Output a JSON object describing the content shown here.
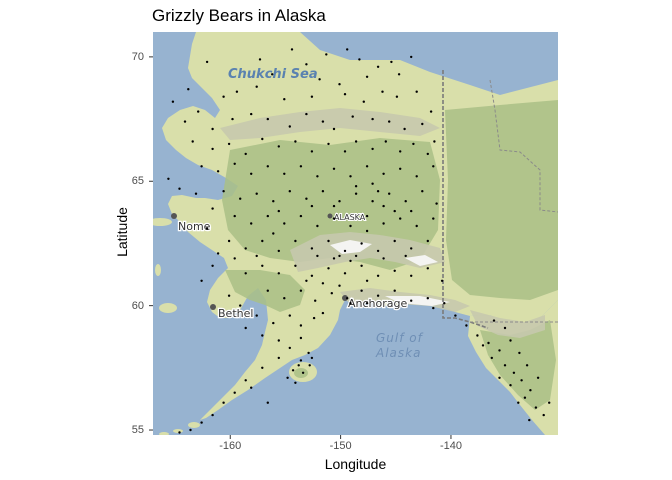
{
  "title": "Grizzly Bears in Alaska",
  "axes": {
    "xlabel": "Longitude",
    "ylabel": "Latitude",
    "xlim": [
      -167,
      -130.3
    ],
    "ylim": [
      54.8,
      71
    ],
    "x_ticks": [
      {
        "value": -160,
        "label": "-160"
      },
      {
        "value": -150,
        "label": "-150"
      },
      {
        "value": -140,
        "label": "-140"
      }
    ],
    "y_ticks": [
      {
        "value": 55,
        "label": "55"
      },
      {
        "value": 60,
        "label": "60"
      },
      {
        "value": 65,
        "label": "65"
      },
      {
        "value": 70,
        "label": "70"
      }
    ]
  },
  "basemap": {
    "labels": {
      "sea_north": "Chukchi Sea",
      "gulf_line1": "Gulf of",
      "gulf_line2": "Alaska",
      "nome": "Nome",
      "bethel": "Bethel",
      "anchorage": "Anchorage",
      "alaska": "ALASKA"
    },
    "colors": {
      "water": "#97b3d0",
      "land": "#d9dfaa",
      "forest": "#a9bf86",
      "mountain": "#c6c9ad",
      "snow": "#f4f4f2",
      "points": "#000000"
    }
  },
  "chart_data": {
    "type": "scatter",
    "title": "Grizzly Bears in Alaska",
    "xlabel": "Longitude",
    "ylabel": "Latitude",
    "xlim": [
      -167,
      -130.3
    ],
    "ylim": [
      54.8,
      71
    ],
    "grid": false,
    "points": [
      [
        -163.8,
        68.7
      ],
      [
        -162.1,
        69.8
      ],
      [
        -159.4,
        68.6
      ],
      [
        -157.3,
        69.9
      ],
      [
        -156.2,
        69.3
      ],
      [
        -154.4,
        70.3
      ],
      [
        -153.1,
        69.7
      ],
      [
        -151.3,
        70.1
      ],
      [
        -149.4,
        70.3
      ],
      [
        -148.3,
        69.9
      ],
      [
        -147.6,
        69.2
      ],
      [
        -146.6,
        69.6
      ],
      [
        -145.4,
        69.8
      ],
      [
        -144.7,
        69.3
      ],
      [
        -143.6,
        70.0
      ],
      [
        -151.9,
        69.1
      ],
      [
        -150.1,
        68.9
      ],
      [
        -152.6,
        68.4
      ],
      [
        -149.6,
        68.5
      ],
      [
        -147.9,
        68.2
      ],
      [
        -146.2,
        68.6
      ],
      [
        -144.9,
        68.4
      ],
      [
        -143.1,
        68.6
      ],
      [
        -155.1,
        68.3
      ],
      [
        -157.6,
        68.8
      ],
      [
        -160.6,
        68.4
      ],
      [
        -162.9,
        67.8
      ],
      [
        -164.1,
        67.4
      ],
      [
        -161.6,
        67.1
      ],
      [
        -159.8,
        67.5
      ],
      [
        -158.1,
        67.7
      ],
      [
        -156.6,
        67.5
      ],
      [
        -154.6,
        67.2
      ],
      [
        -153.1,
        67.7
      ],
      [
        -151.6,
        67.4
      ],
      [
        -150.6,
        67.1
      ],
      [
        -148.9,
        67.6
      ],
      [
        -147.1,
        67.5
      ],
      [
        -145.6,
        67.4
      ],
      [
        -144.2,
        67.1
      ],
      [
        -142.6,
        67.3
      ],
      [
        -141.8,
        67.8
      ],
      [
        -165.2,
        68.2
      ],
      [
        -163.4,
        66.6
      ],
      [
        -161.6,
        66.3
      ],
      [
        -160.1,
        66.5
      ],
      [
        -158.6,
        66.1
      ],
      [
        -157.1,
        66.7
      ],
      [
        -155.6,
        66.4
      ],
      [
        -154.1,
        66.6
      ],
      [
        -152.6,
        66.2
      ],
      [
        -151.1,
        66.5
      ],
      [
        -149.6,
        66.2
      ],
      [
        -148.6,
        66.6
      ],
      [
        -147.1,
        66.3
      ],
      [
        -145.9,
        66.6
      ],
      [
        -144.6,
        66.2
      ],
      [
        -143.4,
        66.5
      ],
      [
        -142.1,
        66.1
      ],
      [
        -141.5,
        66.6
      ],
      [
        -162.6,
        65.6
      ],
      [
        -161.1,
        65.4
      ],
      [
        -159.6,
        65.7
      ],
      [
        -158.1,
        65.3
      ],
      [
        -156.6,
        65.6
      ],
      [
        -155.1,
        65.3
      ],
      [
        -153.6,
        65.6
      ],
      [
        -152.1,
        65.2
      ],
      [
        -150.6,
        65.5
      ],
      [
        -149.1,
        65.2
      ],
      [
        -147.6,
        65.6
      ],
      [
        -146.1,
        65.3
      ],
      [
        -144.6,
        65.5
      ],
      [
        -143.1,
        65.2
      ],
      [
        -141.6,
        65.6
      ],
      [
        -160.6,
        64.6
      ],
      [
        -159.1,
        64.3
      ],
      [
        -157.6,
        64.5
      ],
      [
        -156.1,
        64.2
      ],
      [
        -154.6,
        64.6
      ],
      [
        -153.1,
        64.3
      ],
      [
        -151.6,
        64.6
      ],
      [
        -150.1,
        64.2
      ],
      [
        -148.6,
        64.5
      ],
      [
        -147.1,
        64.2
      ],
      [
        -145.6,
        64.5
      ],
      [
        -144.1,
        64.2
      ],
      [
        -142.6,
        64.6
      ],
      [
        -141.3,
        64.1
      ],
      [
        -159.6,
        63.6
      ],
      [
        -158.1,
        63.3
      ],
      [
        -156.6,
        63.6
      ],
      [
        -155.1,
        63.3
      ],
      [
        -153.6,
        63.6
      ],
      [
        -152.1,
        63.2
      ],
      [
        -150.6,
        63.5
      ],
      [
        -149.1,
        63.2
      ],
      [
        -147.6,
        63.6
      ],
      [
        -146.1,
        63.3
      ],
      [
        -144.6,
        63.5
      ],
      [
        -143.1,
        63.2
      ],
      [
        -141.6,
        63.5
      ],
      [
        -160.1,
        62.6
      ],
      [
        -158.6,
        62.3
      ],
      [
        -157.1,
        62.6
      ],
      [
        -155.6,
        62.2
      ],
      [
        -154.1,
        62.6
      ],
      [
        -152.6,
        62.3
      ],
      [
        -151.1,
        62.6
      ],
      [
        -149.6,
        62.2
      ],
      [
        -148.1,
        62.5
      ],
      [
        -146.6,
        62.2
      ],
      [
        -145.1,
        62.6
      ],
      [
        -143.6,
        62.3
      ],
      [
        -142.1,
        62.6
      ],
      [
        -161.6,
        61.6
      ],
      [
        -158.6,
        61.3
      ],
      [
        -157.1,
        61.6
      ],
      [
        -155.6,
        61.3
      ],
      [
        -154.1,
        61.6
      ],
      [
        -152.6,
        61.2
      ],
      [
        -151.1,
        61.5
      ],
      [
        -149.6,
        61.3
      ],
      [
        -148.1,
        61.6
      ],
      [
        -146.6,
        61.2
      ],
      [
        -145.1,
        61.4
      ],
      [
        -143.6,
        61.2
      ],
      [
        -142.1,
        61.5
      ],
      [
        -140.8,
        61.0
      ],
      [
        -156.6,
        60.6
      ],
      [
        -155.1,
        60.3
      ],
      [
        -153.6,
        60.6
      ],
      [
        -152.3,
        60.2
      ],
      [
        -150.8,
        60.5
      ],
      [
        -149.4,
        60.3
      ],
      [
        -148.1,
        60.6
      ],
      [
        -146.6,
        60.4
      ],
      [
        -145.1,
        60.6
      ],
      [
        -143.6,
        60.2
      ],
      [
        -142.1,
        60.3
      ],
      [
        -157.6,
        59.6
      ],
      [
        -156.1,
        59.3
      ],
      [
        -154.6,
        59.6
      ],
      [
        -153.6,
        59.2
      ],
      [
        -152.4,
        59.5
      ],
      [
        -151.6,
        59.7
      ],
      [
        -158.6,
        59.1
      ],
      [
        -157.1,
        58.8
      ],
      [
        -155.6,
        58.6
      ],
      [
        -154.6,
        58.3
      ],
      [
        -153.6,
        58.7
      ],
      [
        -152.9,
        58.1
      ],
      [
        -153.8,
        57.6
      ],
      [
        -154.3,
        57.4
      ],
      [
        -153.4,
        57.3
      ],
      [
        -152.8,
        57.6
      ],
      [
        -154.8,
        57.1
      ],
      [
        -154.1,
        56.9
      ],
      [
        -153.6,
        57.8
      ],
      [
        -152.6,
        57.9
      ],
      [
        -155.6,
        57.9
      ],
      [
        -157.1,
        57.5
      ],
      [
        -158.6,
        57.0
      ],
      [
        -159.6,
        56.5
      ],
      [
        -160.6,
        56.1
      ],
      [
        -161.6,
        55.6
      ],
      [
        -162.6,
        55.3
      ],
      [
        -163.6,
        55.0
      ],
      [
        -164.6,
        54.9
      ],
      [
        -158.1,
        56.7
      ],
      [
        -156.6,
        56.1
      ],
      [
        -139.6,
        59.6
      ],
      [
        -138.6,
        59.2
      ],
      [
        -137.6,
        58.8
      ],
      [
        -136.6,
        58.5
      ],
      [
        -135.6,
        58.2
      ],
      [
        -134.6,
        58.6
      ],
      [
        -133.8,
        58.1
      ],
      [
        -135.1,
        57.6
      ],
      [
        -134.3,
        57.3
      ],
      [
        -133.6,
        57.0
      ],
      [
        -132.8,
        56.6
      ],
      [
        -134.6,
        56.8
      ],
      [
        -133.3,
        56.3
      ],
      [
        -132.3,
        55.9
      ],
      [
        -131.6,
        55.6
      ],
      [
        -132.9,
        55.4
      ],
      [
        -133.9,
        56.1
      ],
      [
        -135.6,
        57.1
      ],
      [
        -136.3,
        57.9
      ],
      [
        -137.1,
        58.4
      ],
      [
        -131.1,
        56.1
      ],
      [
        -132.1,
        57.1
      ],
      [
        -133.1,
        57.6
      ],
      [
        -135.1,
        59.1
      ],
      [
        -136.1,
        59.4
      ],
      [
        -140.6,
        60.1
      ],
      [
        -141.6,
        59.9
      ],
      [
        -165.6,
        65.1
      ],
      [
        -164.6,
        64.7
      ],
      [
        -163.1,
        64.5
      ],
      [
        -161.6,
        63.9
      ],
      [
        -162.1,
        63.1
      ],
      [
        -161.1,
        62.1
      ],
      [
        -159.6,
        61.9
      ],
      [
        -162.6,
        61.0
      ],
      [
        -160.1,
        60.4
      ],
      [
        -159.1,
        60.0
      ],
      [
        -148.6,
        64.8
      ],
      [
        -147.1,
        64.9
      ],
      [
        -146.1,
        64.0
      ],
      [
        -145.1,
        63.8
      ],
      [
        -147.6,
        63.0
      ],
      [
        -150.1,
        62.0
      ],
      [
        -152.1,
        62.0
      ],
      [
        -150.6,
        61.9
      ],
      [
        -149.1,
        61.8
      ],
      [
        -148.6,
        62.0
      ],
      [
        -147.6,
        61.0
      ],
      [
        -146.1,
        61.9
      ],
      [
        -144.1,
        62.0
      ],
      [
        -143.6,
        63.8
      ],
      [
        -146.6,
        64.6
      ],
      [
        -150.6,
        64.0
      ],
      [
        -152.6,
        64.0
      ],
      [
        -155.6,
        63.8
      ],
      [
        -156.1,
        62.9
      ],
      [
        -157.6,
        62.0
      ],
      [
        -153.1,
        61.0
      ],
      [
        -151.6,
        60.9
      ],
      [
        -150.1,
        60.8
      ],
      [
        -149.1,
        60.1
      ],
      [
        -147.6,
        60.1
      ]
    ]
  }
}
